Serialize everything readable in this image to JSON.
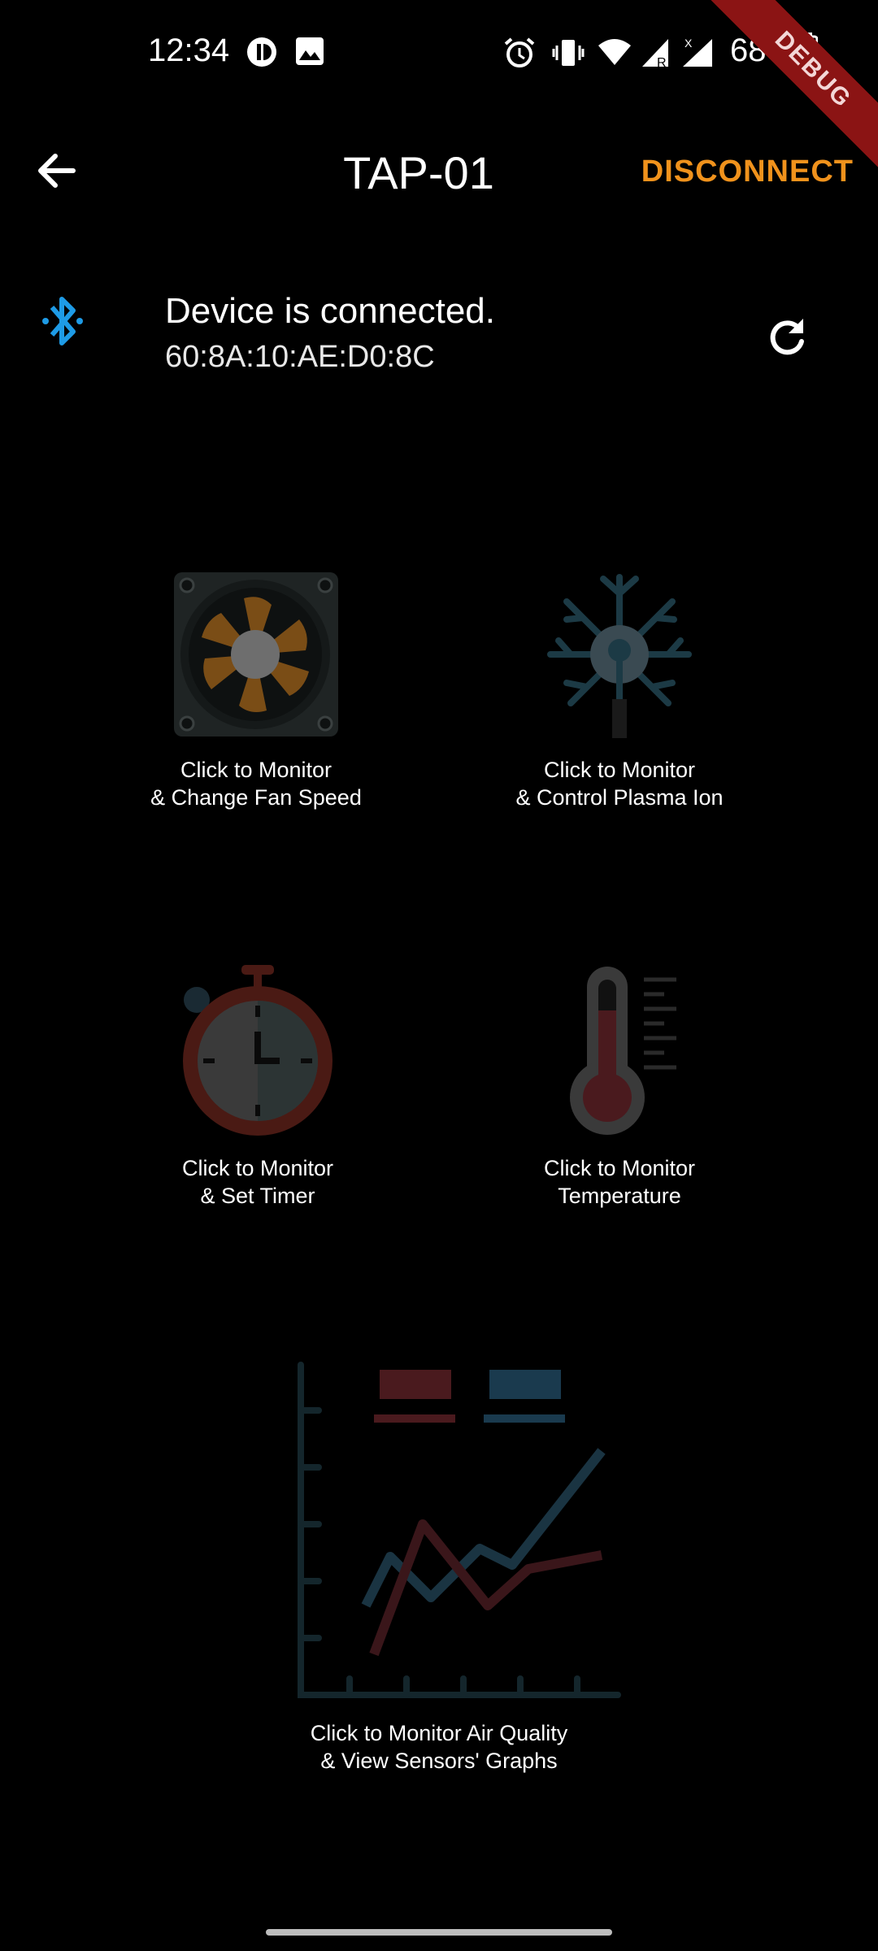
{
  "status_bar": {
    "time": "12:34",
    "battery": "68%",
    "debug_label": "DEBUG"
  },
  "app_bar": {
    "title": "TAP-01",
    "disconnect_label": "DISCONNECT"
  },
  "connection": {
    "status": "Device is connected.",
    "mac": "60:8A:10:AE:D0:8C"
  },
  "tiles": {
    "fan": {
      "line1": "Click to Monitor",
      "line2": "& Change Fan Speed"
    },
    "plasma": {
      "line1": "Click to Monitor",
      "line2": "& Control Plasma Ion"
    },
    "timer": {
      "line1": "Click to Monitor",
      "line2": "& Set Timer"
    },
    "temperature": {
      "line1": "Click to Monitor",
      "line2": "Temperature"
    },
    "graphs": {
      "line1": "Click to Monitor Air Quality",
      "line2": "& View Sensors' Graphs"
    }
  },
  "colors": {
    "accent": "#f0921c",
    "bluetooth": "#1e9be6"
  }
}
